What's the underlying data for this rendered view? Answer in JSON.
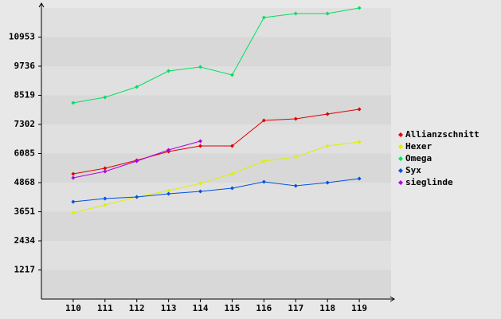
{
  "chart_data": {
    "type": "line",
    "categories": [
      "110",
      "111",
      "112",
      "113",
      "114",
      "115",
      "116",
      "117",
      "118",
      "119"
    ],
    "series": [
      {
        "name": "Allianzschnitt",
        "color": "#e00000",
        "values": [
          5235,
          5468,
          5802,
          6168,
          6402,
          6402,
          7469,
          7535,
          7735,
          7935
        ]
      },
      {
        "name": "Hexer",
        "color": "#dcf000",
        "values": [
          3601,
          3934,
          4268,
          4534,
          4835,
          5235,
          5768,
          5935,
          6402,
          6568
        ]
      },
      {
        "name": "Omega",
        "color": "#00e060",
        "values": [
          8202,
          8436,
          8869,
          9536,
          9703,
          9369,
          11770,
          11937,
          11937,
          12170
        ]
      },
      {
        "name": "Syx",
        "color": "#0050e0",
        "values": [
          4068,
          4201,
          4268,
          4401,
          4501,
          4635,
          4901,
          4735,
          4868,
          5035
        ]
      },
      {
        "name": "sieglinde",
        "color": "#b000e0",
        "values": [
          5068,
          5335,
          5768,
          6235,
          6602,
          null,
          null,
          null,
          null,
          null
        ]
      }
    ],
    "ylim": [
      0,
      12170
    ],
    "yticks": [
      1217,
      2434,
      3651,
      4868,
      6085,
      7302,
      8519,
      9736,
      10953
    ],
    "legend": "right"
  }
}
